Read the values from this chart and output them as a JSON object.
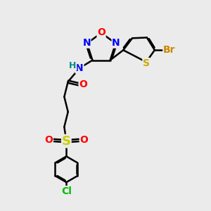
{
  "bg_color": "#ebebeb",
  "bond_color": "#000000",
  "bond_width": 1.8,
  "atom_colors": {
    "N": "#0000ff",
    "O": "#ff0000",
    "S_thio": "#ccaa00",
    "S_sulfonyl": "#cccc00",
    "Br": "#cc8800",
    "Cl": "#00bb00",
    "H": "#008888"
  },
  "font_size": 10,
  "figsize": [
    3.0,
    3.0
  ],
  "dpi": 100,
  "xlim": [
    0,
    10
  ],
  "ylim": [
    0,
    10
  ]
}
